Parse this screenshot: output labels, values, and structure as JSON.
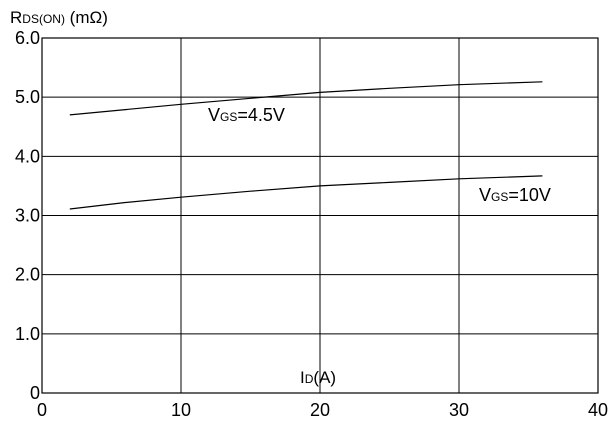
{
  "chart_data": {
    "type": "line",
    "title": "",
    "y_axis_label": {
      "main": "R",
      "sub": "DS(ON)",
      "rest": " (mΩ)"
    },
    "x_axis_label": {
      "main": "I",
      "sub": "D",
      "rest": "(A)"
    },
    "xlim": [
      0,
      40
    ],
    "ylim": [
      0,
      6
    ],
    "x_ticks": [
      0,
      10,
      20,
      30,
      40
    ],
    "x_tick_labels": [
      "0",
      "10",
      "20",
      "30",
      "40"
    ],
    "y_ticks": [
      0,
      1,
      2,
      3,
      4,
      5,
      6
    ],
    "y_tick_labels": [
      "0",
      "1.0",
      "2.0",
      "3.0",
      "4.0",
      "5.0",
      "6.0"
    ],
    "grid": true,
    "series": [
      {
        "label": {
          "main": "V",
          "sub": "GS",
          "rest": "=4.5V"
        },
        "x": [
          2,
          6,
          10,
          15,
          20,
          25,
          30,
          36
        ],
        "y": [
          4.7,
          4.79,
          4.88,
          4.98,
          5.08,
          5.15,
          5.21,
          5.26
        ]
      },
      {
        "label": {
          "main": "V",
          "sub": "GS",
          "rest": "=10V"
        },
        "x": [
          2,
          6,
          10,
          15,
          20,
          25,
          30,
          36
        ],
        "y": [
          3.11,
          3.22,
          3.31,
          3.41,
          3.5,
          3.56,
          3.62,
          3.67
        ]
      }
    ],
    "colors": {
      "line": "#000000",
      "grid": "#000000"
    }
  }
}
